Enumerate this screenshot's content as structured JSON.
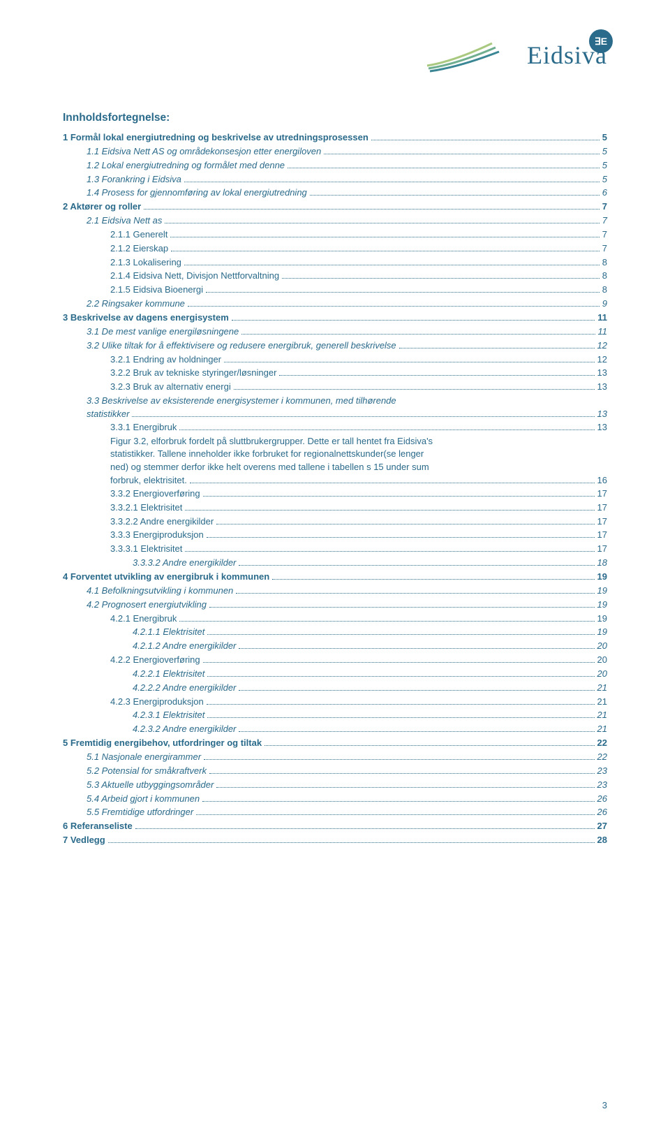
{
  "brand": {
    "name": "Eidsiva",
    "badge": "∃E",
    "text_color": "#2a6a8a",
    "swoosh_colors": [
      "#a8c97f",
      "#6fae8f",
      "#3a8694"
    ]
  },
  "title": "Innholdsfortegnelse:",
  "page_number": "3",
  "entries": [
    {
      "num": "1",
      "text": "Formål lokal energiutredning og beskrivelse av utredningsprosessen",
      "page": "5",
      "indent": 0,
      "bold": true
    },
    {
      "num": "1.1",
      "text": "Eidsiva Nett AS og områdekonsesjon etter energiloven",
      "page": "5",
      "indent": 1,
      "italic": true
    },
    {
      "num": "1.2",
      "text": "Lokal energiutredning og formålet med denne",
      "page": "5",
      "indent": 1,
      "italic": true
    },
    {
      "num": "1.3",
      "text": "Forankring i Eidsiva",
      "page": "5",
      "indent": 1,
      "italic": true
    },
    {
      "num": "1.4",
      "text": "Prosess for gjennomføring av lokal energiutredning",
      "page": "6",
      "indent": 1,
      "italic": true
    },
    {
      "num": "2",
      "text": "Aktører og roller",
      "page": "7",
      "indent": 0,
      "bold": true
    },
    {
      "num": "2.1",
      "text": "Eidsiva Nett as",
      "page": "7",
      "indent": 1,
      "italic": true
    },
    {
      "num": "2.1.1",
      "text": "Generelt",
      "page": "7",
      "indent": 2
    },
    {
      "num": "2.1.2",
      "text": "Eierskap",
      "page": "7",
      "indent": 2
    },
    {
      "num": "2.1.3",
      "text": "Lokalisering",
      "page": "8",
      "indent": 2
    },
    {
      "num": "2.1.4",
      "text": "Eidsiva Nett, Divisjon Nettforvaltning",
      "page": "8",
      "indent": 2
    },
    {
      "num": "2.1.5",
      "text": "Eidsiva Bioenergi",
      "page": "8",
      "indent": 2
    },
    {
      "num": "2.2",
      "text": "Ringsaker kommune",
      "page": "9",
      "indent": 1,
      "italic": true
    },
    {
      "num": "3",
      "text": "Beskrivelse av dagens energisystem",
      "page": "11",
      "indent": 0,
      "bold": true
    },
    {
      "num": "3.1",
      "text": "De mest vanlige energiløsningene",
      "page": "11",
      "indent": 1,
      "italic": true
    },
    {
      "num": "3.2",
      "text": "Ulike tiltak for å effektivisere og redusere energibruk, generell beskrivelse",
      "page": "12",
      "indent": 1,
      "italic": true
    },
    {
      "num": "3.2.1",
      "text": "Endring av holdninger",
      "page": "12",
      "indent": 2
    },
    {
      "num": "3.2.2",
      "text": "Bruk av tekniske styringer/løsninger",
      "page": "13",
      "indent": 2
    },
    {
      "num": "3.2.3",
      "text": "Bruk av alternativ energi",
      "page": "13",
      "indent": 2
    },
    {
      "num": "3.3",
      "text_lines": [
        "Beskrivelse av eksisterende energisystemer i kommunen, med tilhørende",
        "statistikker"
      ],
      "page": "13",
      "indent": 1,
      "italic": true,
      "wrap": true
    },
    {
      "num": "3.3.1",
      "text": "Energibruk",
      "page": "13",
      "indent": 2
    },
    {
      "num": "",
      "text_lines": [
        "Figur 3.2, elforbruk fordelt på sluttbrukergrupper. Dette er tall hentet fra Eidsiva's",
        "statistikker. Tallene inneholder ikke forbruket for regionalnettskunder(se lenger",
        "ned) og stemmer derfor ikke helt overens med tallene i tabellen s 15 under sum",
        "forbruk, elektrisitet."
      ],
      "page": "16",
      "indent": 2,
      "wrap": true
    },
    {
      "num": "3.3.2",
      "text": "Energioverføring",
      "page": "17",
      "indent": 2
    },
    {
      "num": "3.3.2.1",
      "text": "Elektrisitet",
      "page": "17",
      "indent": 2
    },
    {
      "num": "3.3.2.2",
      "text": "Andre energikilder",
      "page": "17",
      "indent": 2
    },
    {
      "num": "3.3.3",
      "text": "Energiproduksjon",
      "page": "17",
      "indent": 2
    },
    {
      "num": "3.3.3.1",
      "text": "Elektrisitet",
      "page": "17",
      "indent": 2
    },
    {
      "num": "3.3.3.2",
      "text": "Andre energikilder",
      "page": "18",
      "indent": 3,
      "italic": true
    },
    {
      "num": "4",
      "text": "Forventet utvikling av energibruk i kommunen",
      "page": "19",
      "indent": 0,
      "bold": true
    },
    {
      "num": "4.1",
      "text": "Befolkningsutvikling i kommunen",
      "page": "19",
      "indent": 1,
      "italic": true
    },
    {
      "num": "4.2",
      "text": "Prognosert energiutvikling",
      "page": "19",
      "indent": 1,
      "italic": true
    },
    {
      "num": "4.2.1",
      "text": "Energibruk",
      "page": "19",
      "indent": 2
    },
    {
      "num": "4.2.1.1",
      "text": "Elektrisitet",
      "page": "19",
      "indent": 3,
      "italic": true
    },
    {
      "num": "4.2.1.2",
      "text": "Andre energikilder",
      "page": "20",
      "indent": 3,
      "italic": true
    },
    {
      "num": "4.2.2",
      "text": "Energioverføring",
      "page": "20",
      "indent": 2
    },
    {
      "num": "4.2.2.1",
      "text": "Elektrisitet",
      "page": "20",
      "indent": 3,
      "italic": true
    },
    {
      "num": "4.2.2.2",
      "text": "Andre energikilder",
      "page": "21",
      "indent": 3,
      "italic": true
    },
    {
      "num": "4.2.3",
      "text": "Energiproduksjon",
      "page": "21",
      "indent": 2
    },
    {
      "num": "4.2.3.1",
      "text": "Elektrisitet",
      "page": "21",
      "indent": 3,
      "italic": true
    },
    {
      "num": "4.2.3.2",
      "text": "Andre energikilder",
      "page": "21",
      "indent": 3,
      "italic": true
    },
    {
      "num": "5",
      "text": "Fremtidig energibehov, utfordringer og tiltak",
      "page": "22",
      "indent": 0,
      "bold": true
    },
    {
      "num": "5.1",
      "text": "Nasjonale energirammer",
      "page": "22",
      "indent": 1,
      "italic": true
    },
    {
      "num": "5.2",
      "text": "Potensial for småkraftverk",
      "page": "23",
      "indent": 1,
      "italic": true
    },
    {
      "num": "5.3",
      "text": "Aktuelle utbyggingsområder",
      "page": "23",
      "indent": 1,
      "italic": true
    },
    {
      "num": "5.4",
      "text": "Arbeid gjort i kommunen",
      "page": "26",
      "indent": 1,
      "italic": true
    },
    {
      "num": "5.5",
      "text": "Fremtidige utfordringer",
      "page": "26",
      "indent": 1,
      "italic": true
    },
    {
      "num": "6",
      "text": "Referanseliste",
      "page": "27",
      "indent": 0,
      "bold": true
    },
    {
      "num": "7",
      "text": "Vedlegg",
      "page": "28",
      "indent": 0,
      "bold": true
    }
  ]
}
